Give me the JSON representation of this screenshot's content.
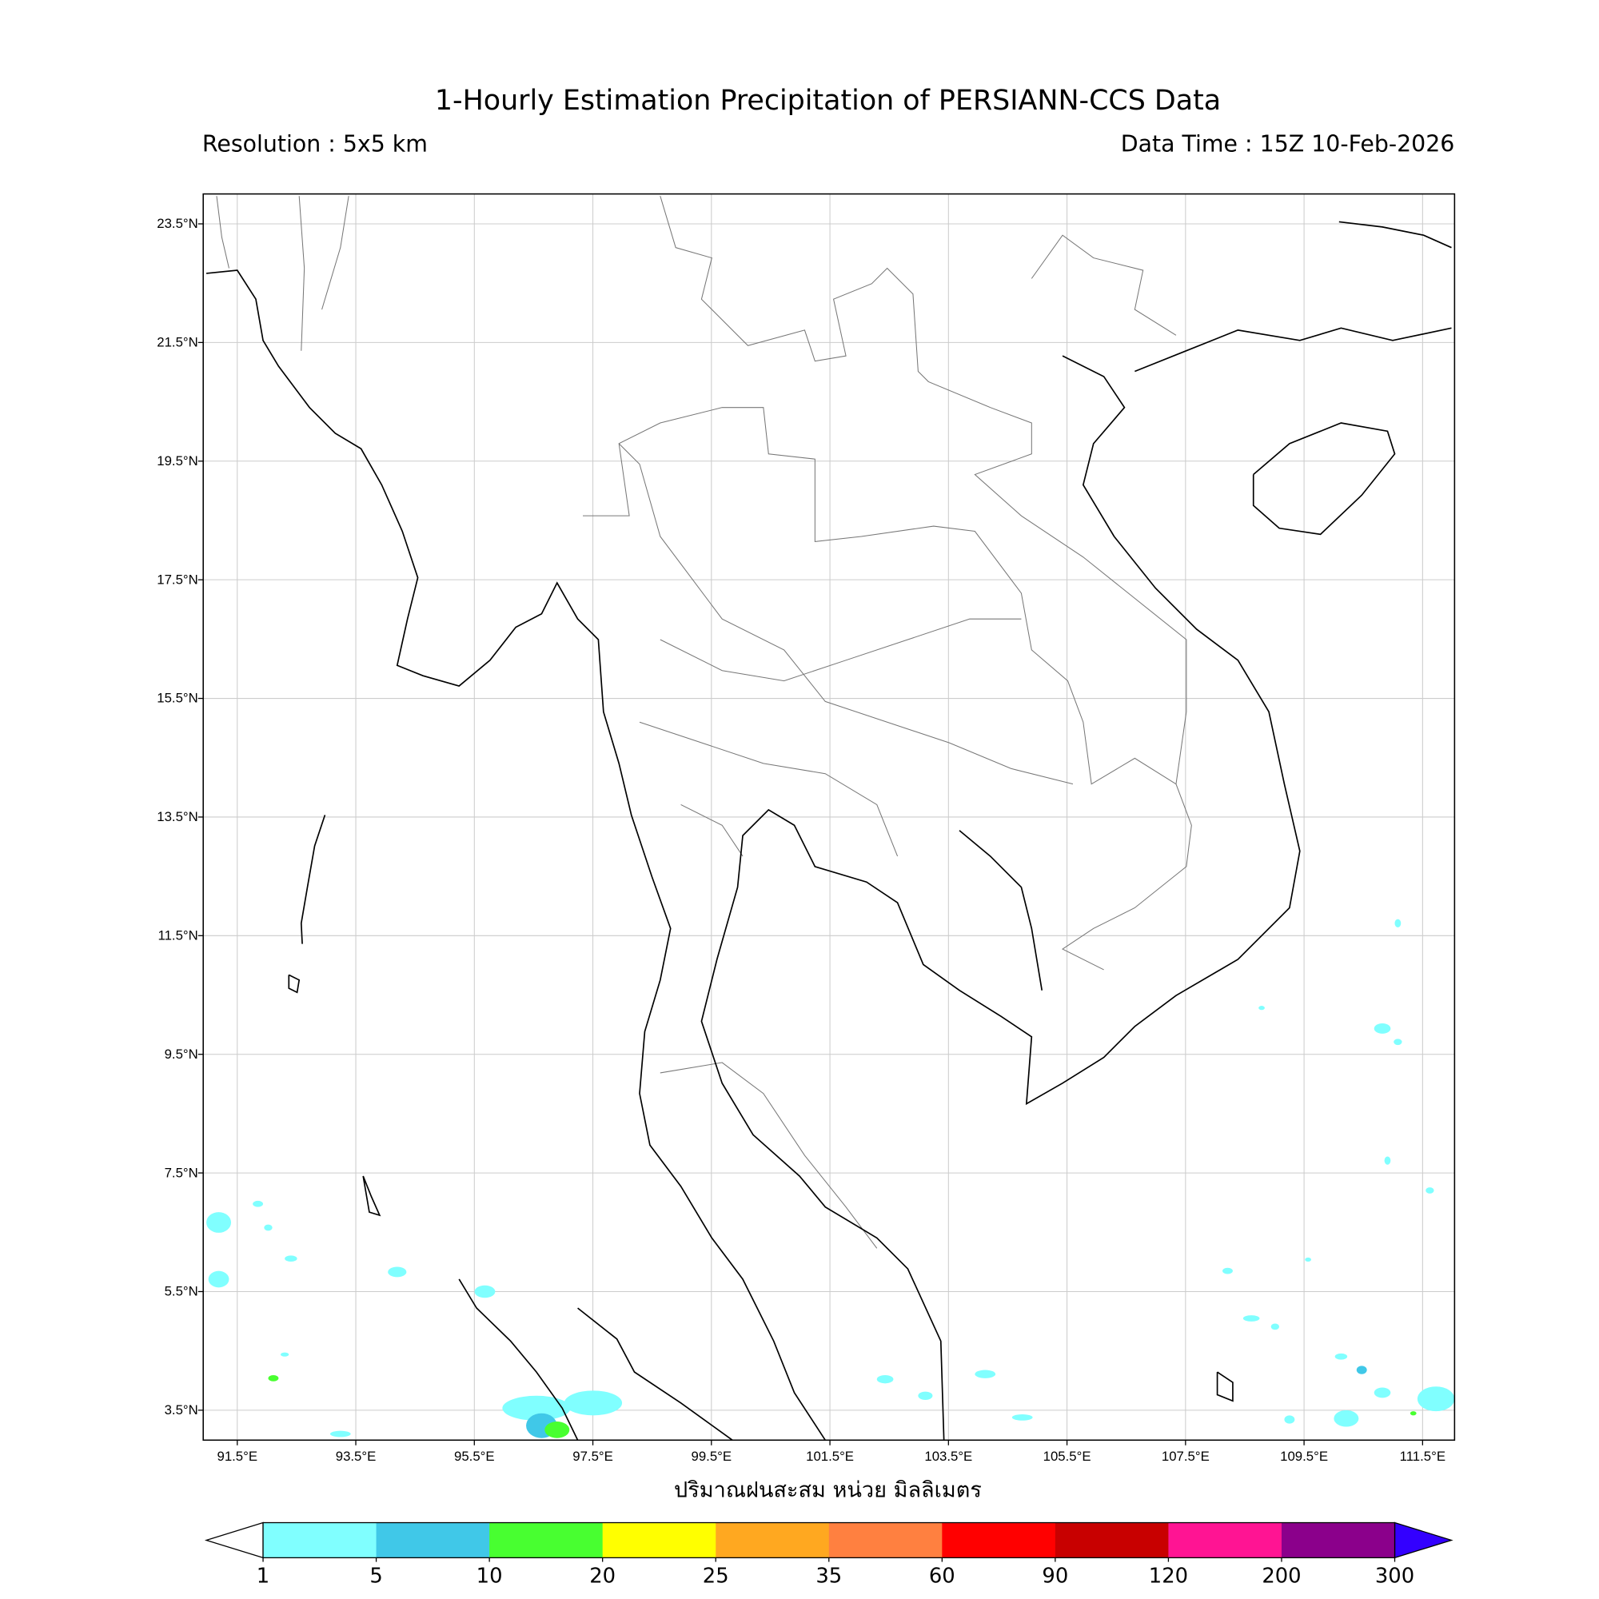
{
  "title": "1-Hourly Estimation Precipitation of PERSIANN-CCS Data",
  "resolution": "Resolution : 5x5 km",
  "data_time": "Data Time : 15Z 10-Feb-2026",
  "map": {
    "extent": {
      "lon": [
        90.9,
        112.0
      ],
      "lat": [
        3.0,
        24.0
      ]
    },
    "lon_ticks": [
      91.5,
      93.5,
      95.5,
      97.5,
      99.5,
      101.5,
      103.5,
      105.5,
      107.5,
      109.5,
      111.5
    ],
    "lon_tick_labels": [
      "91.5°E",
      "93.5°E",
      "95.5°E",
      "97.5°E",
      "99.5°E",
      "101.5°E",
      "103.5°E",
      "105.5°E",
      "107.5°E",
      "109.5°E",
      "111.5°E"
    ],
    "lat_ticks": [
      23.5,
      21.5,
      19.5,
      17.5,
      15.5,
      13.5,
      11.5,
      9.5,
      7.5,
      5.5,
      3.5
    ],
    "lat_tick_labels": [
      "23.5°N",
      "21.5°N",
      "19.5°N",
      "17.5°N",
      "15.5°N",
      "13.5°N",
      "11.5°N",
      "9.5°N",
      "7.5°N",
      "5.5°N",
      "3.5°N"
    ],
    "grid": true,
    "xlabel": "ปริมาณฝนสะสม หน่วย มิลลิเมตร"
  },
  "colorbar": {
    "boundaries": [
      "1",
      "5",
      "10",
      "20",
      "25",
      "35",
      "60",
      "90",
      "120",
      "200",
      "300"
    ],
    "colors": [
      "#80ffff",
      "#40c8e8",
      "#48ff30",
      "#ffff00",
      "#ffa820",
      "#ff8040",
      "#ff0000",
      "#c80000",
      "#ff1493",
      "#8b008b"
    ],
    "under_color": "#ffffff",
    "over_color": "#3300ff",
    "extend": "both"
  }
}
